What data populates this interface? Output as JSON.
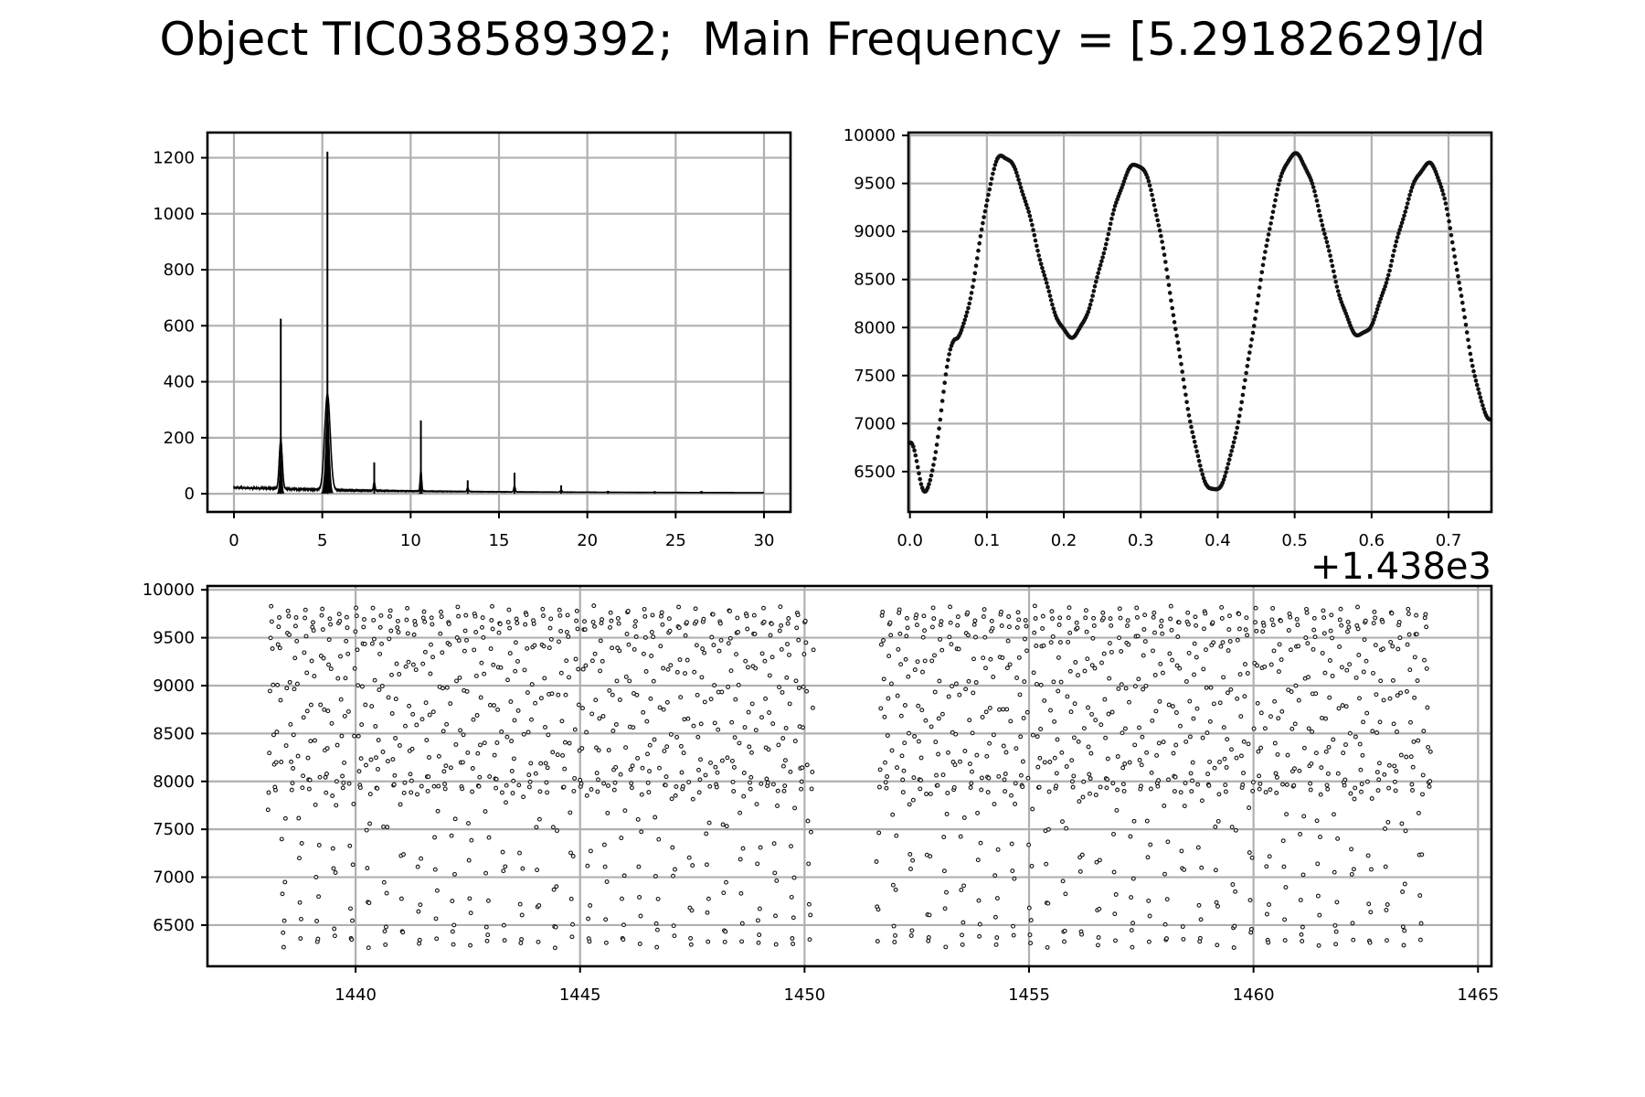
{
  "title": "Object TIC038589392;  Main Frequency = [5.29182629]/d",
  "chart_data": [
    {
      "id": "periodogram",
      "type": "line",
      "xlim": [
        -1.5,
        31.5
      ],
      "ylim": [
        -65,
        1290
      ],
      "xticks": [
        0,
        5,
        10,
        15,
        20,
        25,
        30
      ],
      "yticks": [
        0,
        200,
        400,
        600,
        800,
        1000,
        1200
      ],
      "grid": true,
      "peaks": [
        {
          "x": 2.65,
          "y": 625
        },
        {
          "x": 5.29,
          "y": 1222
        },
        {
          "x": 7.94,
          "y": 112
        },
        {
          "x": 10.58,
          "y": 262
        },
        {
          "x": 13.23,
          "y": 48
        },
        {
          "x": 15.88,
          "y": 75
        },
        {
          "x": 18.52,
          "y": 30
        },
        {
          "x": 21.17,
          "y": 10
        },
        {
          "x": 23.81,
          "y": 8
        },
        {
          "x": 26.46,
          "y": 10
        }
      ],
      "baseline": 15
    },
    {
      "id": "phased-light-curve",
      "type": "scatter",
      "xlim": [
        -0.002,
        0.7558
      ],
      "ylim": [
        6080,
        10030
      ],
      "xticks": [
        "0.0",
        "0.1",
        "0.2",
        "0.3",
        "0.4",
        "0.5",
        "0.6",
        "0.7"
      ],
      "yticks": [
        6500,
        7000,
        7500,
        8000,
        8500,
        9000,
        9500,
        10000
      ],
      "grid": true,
      "period_days": 0.37803,
      "curve_points": [
        {
          "phase": 0.0,
          "flux": 6800
        },
        {
          "phase": 0.02,
          "flux": 6300
        },
        {
          "phase": 0.06,
          "flux": 7900
        },
        {
          "phase": 0.12,
          "flux": 9790
        },
        {
          "phase": 0.21,
          "flux": 7910
        },
        {
          "phase": 0.295,
          "flux": 9700
        },
        {
          "phase": 0.395,
          "flux": 6300
        },
        {
          "phase": 0.5,
          "flux": 9800
        },
        {
          "phase": 0.585,
          "flux": 7920
        },
        {
          "phase": 0.675,
          "flux": 9700
        },
        {
          "phase": 0.756,
          "flux": 7050
        }
      ]
    },
    {
      "id": "time-series",
      "type": "scatter",
      "xlim": [
        1436.7,
        1465.3
      ],
      "ylim": [
        6070,
        10040
      ],
      "xticks": [
        1440,
        1445,
        1450,
        1455,
        1460,
        1465
      ],
      "yticks": [
        6500,
        7000,
        7500,
        8000,
        8500,
        9000,
        9500,
        10000
      ],
      "offset_text": "+1.438e3",
      "grid": true,
      "segments": [
        [
          1438.05,
          1450.2
        ],
        [
          1451.6,
          1463.95
        ]
      ],
      "flux_min": 6300,
      "flux_max": 9800
    }
  ]
}
